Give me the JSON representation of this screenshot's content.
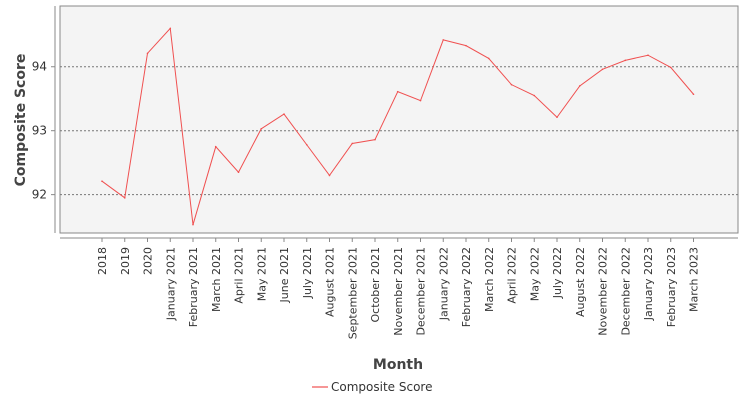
{
  "chart_data": {
    "type": "line",
    "xlabel": "Month",
    "ylabel": "Composite Score",
    "categories": [
      "2018",
      "2019",
      "2020",
      "January 2021",
      "February 2021",
      "March 2021",
      "April 2021",
      "May 2021",
      "June 2021",
      "July 2021",
      "August 2021",
      "September 2021",
      "October 2021",
      "November 2021",
      "December 2021",
      "January 2022",
      "February 2022",
      "March 2022",
      "April 2022",
      "May 2022",
      "July 2022",
      "August 2022",
      "November 2022",
      "December 2022",
      "January 2023",
      "February 2023",
      "March 2023"
    ],
    "series": [
      {
        "name": "Composite Score",
        "color": "#f05050",
        "values": [
          92.21,
          91.95,
          94.21,
          94.6,
          91.53,
          92.75,
          92.35,
          93.03,
          93.26,
          92.78,
          92.3,
          92.8,
          92.86,
          93.61,
          93.47,
          94.42,
          94.33,
          94.13,
          93.72,
          93.55,
          93.21,
          93.7,
          93.96,
          94.1,
          94.18,
          93.99,
          93.57
        ]
      }
    ],
    "ylim": [
      91.4,
      94.95
    ],
    "yticks": [
      92,
      93,
      94
    ],
    "grid": true,
    "legend_position": "bottom-center"
  }
}
